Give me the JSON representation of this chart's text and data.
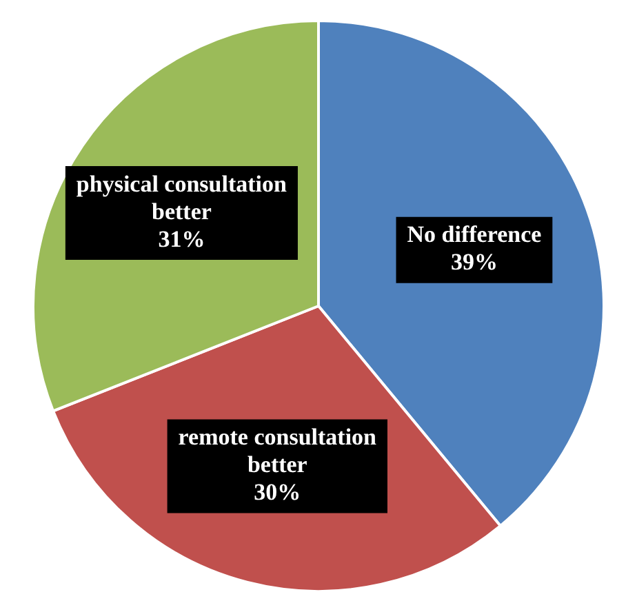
{
  "chart_data": {
    "type": "pie",
    "categories": [
      "No difference",
      "remote consultation better",
      "physical consultation better"
    ],
    "values": [
      39,
      30,
      31
    ],
    "colors": [
      "#4f81bd",
      "#c0504d",
      "#9bbb59"
    ],
    "value_labels": [
      "39%",
      "30%",
      "31%"
    ]
  }
}
